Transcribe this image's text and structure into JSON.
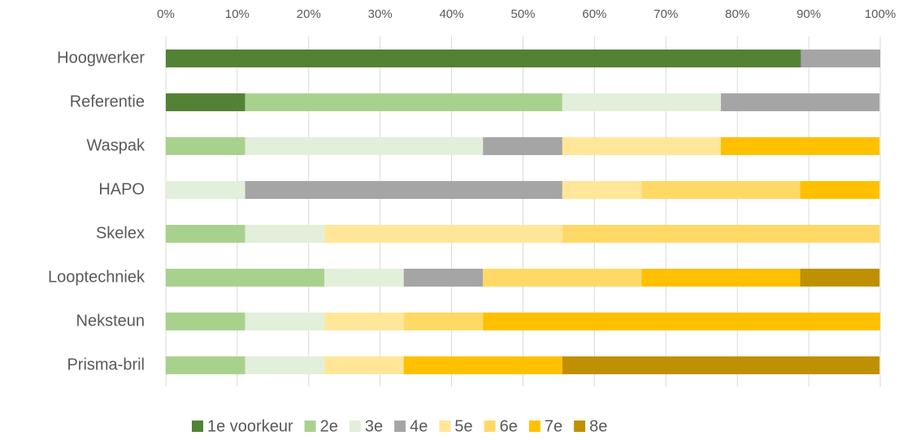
{
  "chart_data": {
    "type": "bar",
    "orientation": "horizontal",
    "stacked": true,
    "categories": [
      "Hoogwerker",
      "Referentie",
      "Waspak",
      "HAPO",
      "Skelex",
      "Looptechniek",
      "Neksteun",
      "Prisma-bril"
    ],
    "series": [
      {
        "name": "1e voorkeur",
        "color": "#548235",
        "values": [
          88.9,
          11.1,
          null,
          null,
          null,
          null,
          null,
          null
        ]
      },
      {
        "name": "2e",
        "color": "#a9d18e",
        "values": [
          null,
          44.4,
          11.1,
          null,
          11.1,
          22.2,
          11.1,
          11.1
        ]
      },
      {
        "name": "3e",
        "color": "#e2efda",
        "values": [
          null,
          22.2,
          33.3,
          11.1,
          11.1,
          11.1,
          11.1,
          11.1
        ]
      },
      {
        "name": "4e",
        "color": "#a5a5a5",
        "values": [
          11.1,
          22.2,
          11.1,
          44.4,
          null,
          11.1,
          null,
          null
        ]
      },
      {
        "name": "5e",
        "color": "#ffe699",
        "values": [
          null,
          null,
          22.2,
          11.1,
          33.3,
          null,
          11.1,
          11.1
        ]
      },
      {
        "name": "6e",
        "color": "#ffd966",
        "values": [
          null,
          null,
          null,
          22.2,
          44.4,
          22.2,
          11.1,
          null
        ]
      },
      {
        "name": "7e",
        "color": "#ffc000",
        "values": [
          null,
          null,
          22.2,
          11.1,
          null,
          22.2,
          55.6,
          22.2
        ]
      },
      {
        "name": "8e",
        "color": "#bf9000",
        "values": [
          null,
          null,
          null,
          null,
          null,
          11.1,
          null,
          44.4
        ]
      }
    ],
    "xlim": [
      0,
      100
    ],
    "xticks": [
      {
        "value": 0,
        "label": "0%"
      },
      {
        "value": 10,
        "label": "10%"
      },
      {
        "value": 20,
        "label": "20%"
      },
      {
        "value": 30,
        "label": "30%"
      },
      {
        "value": 40,
        "label": "40%"
      },
      {
        "value": 50,
        "label": "50%"
      },
      {
        "value": 60,
        "label": "60%"
      },
      {
        "value": 70,
        "label": "70%"
      },
      {
        "value": 80,
        "label": "80%"
      },
      {
        "value": 90,
        "label": "90%"
      },
      {
        "value": 100,
        "label": "100%"
      }
    ],
    "grid": true,
    "legend": "bottom"
  }
}
